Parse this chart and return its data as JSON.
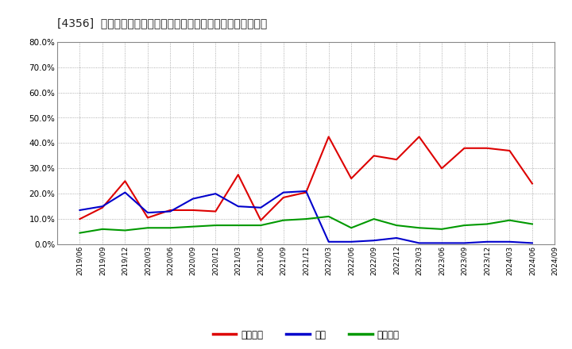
{
  "title": "[4356]  売上債権、在庫、買入債務の総資産に対する比率の推移",
  "x_labels": [
    "2019/06",
    "2019/09",
    "2019/12",
    "2020/03",
    "2020/06",
    "2020/09",
    "2020/12",
    "2021/03",
    "2021/06",
    "2021/09",
    "2021/12",
    "2022/03",
    "2022/06",
    "2022/09",
    "2022/12",
    "2023/03",
    "2023/06",
    "2023/09",
    "2023/12",
    "2024/03",
    "2024/06",
    "2024/09"
  ],
  "uriagesakiken": [
    10.0,
    14.5,
    25.0,
    10.5,
    13.5,
    13.5,
    13.0,
    27.5,
    9.5,
    18.5,
    20.5,
    42.5,
    26.0,
    35.0,
    33.5,
    42.5,
    30.0,
    38.0,
    38.0,
    37.0,
    24.0,
    null
  ],
  "zaiko": [
    13.5,
    15.0,
    20.5,
    12.5,
    13.0,
    18.0,
    20.0,
    15.0,
    14.5,
    20.5,
    21.0,
    1.0,
    1.0,
    1.5,
    2.5,
    0.5,
    0.5,
    0.5,
    1.0,
    1.0,
    0.5,
    null
  ],
  "kaiireisaimu": [
    4.5,
    6.0,
    5.5,
    6.5,
    6.5,
    7.0,
    7.5,
    7.5,
    7.5,
    9.5,
    10.0,
    11.0,
    6.5,
    10.0,
    7.5,
    6.5,
    6.0,
    7.5,
    8.0,
    9.5,
    8.0,
    null
  ],
  "colors": {
    "uriagesakiken": "#dd0000",
    "zaiko": "#0000cc",
    "kaiireisaimu": "#009900"
  },
  "legend_labels": {
    "uriagesakiken": "売上債権",
    "zaiko": "在庫",
    "kaiireisaimu": "買入債務"
  },
  "ylim": [
    0,
    80
  ],
  "yticks": [
    0,
    10,
    20,
    30,
    40,
    50,
    60,
    70,
    80
  ],
  "bg_color": "#ffffff",
  "grid_color": "#999999",
  "title_fontsize": 10,
  "line_width": 1.5
}
